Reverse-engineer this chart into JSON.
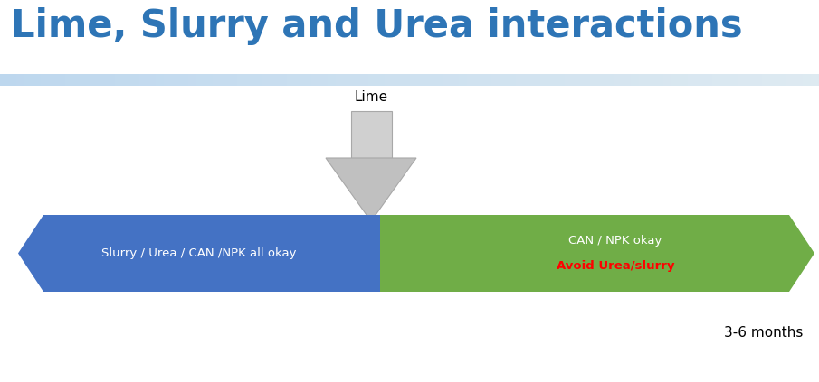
{
  "title": "Lime, Slurry and Urea interactions",
  "title_color": "#2E75B6",
  "title_fontsize": 30,
  "background_color": "#ffffff",
  "header_bar_color1": "#BDD7EE",
  "header_bar_color2": "#DEEAF1",
  "blue_arrow_color": "#4472C4",
  "green_arrow_color": "#70AD47",
  "blue_text": "Slurry / Urea / CAN /NPK all okay",
  "green_text_line1": "CAN / NPK okay",
  "green_text_line2": "Avoid Urea/slurry",
  "green_text_line2_color": "#FF0000",
  "white_text_color": "#ffffff",
  "lime_label": "Lime",
  "lime_label_color": "#000000",
  "lime_label_fontsize": 11,
  "months_label": "3-6 months",
  "months_color": "#000000",
  "months_fontsize": 11,
  "arrow_shaft_color": "#D0D0D0",
  "arrow_head_color": "#C0C0C0",
  "arrow_edge_color": "#A8A8A8"
}
